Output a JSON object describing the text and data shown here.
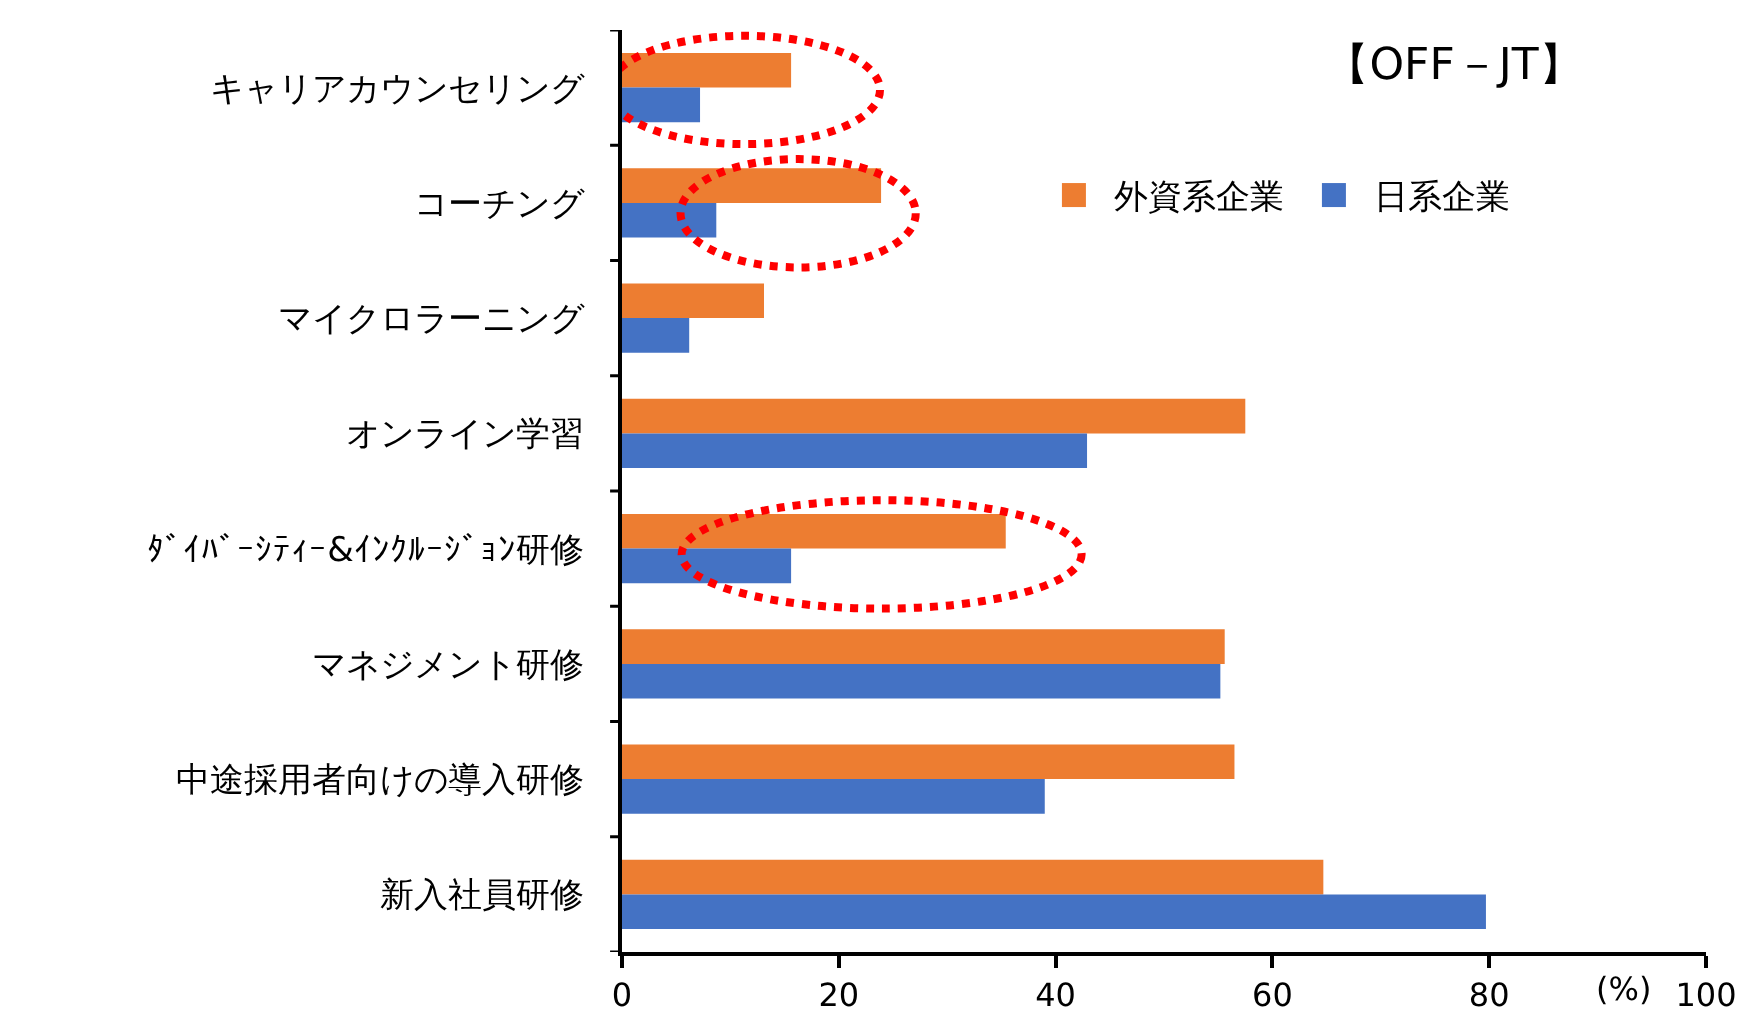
{
  "chart_data": {
    "type": "bar",
    "orientation": "horizontal",
    "title": "【OFF－JT】",
    "xlabel": "(%)",
    "categories": [
      "キャリアカウンセリング",
      "コーチング",
      "マイクロラーニング",
      "オンライン学習",
      "ﾀﾞｲﾊﾞｰｼﾃｨｰ&ｲﾝｸﾙｰｼﾞｮﾝ研修",
      "マネジメント研修",
      "中途採用者向けの導入研修",
      "新入社員研修"
    ],
    "series": [
      {
        "name": "外資系企業",
        "color": "#ed7d31",
        "values": [
          15.6,
          23.9,
          13.1,
          57.5,
          35.4,
          55.6,
          56.5,
          64.7
        ]
      },
      {
        "name": "日系企業",
        "color": "#4472c4",
        "values": [
          7.2,
          8.7,
          6.2,
          42.9,
          15.6,
          55.2,
          39.0,
          79.7
        ]
      }
    ],
    "xlim": [
      0,
      100
    ],
    "xticks": [
      0,
      20,
      40,
      60,
      80,
      100
    ],
    "legend": "top right"
  }
}
